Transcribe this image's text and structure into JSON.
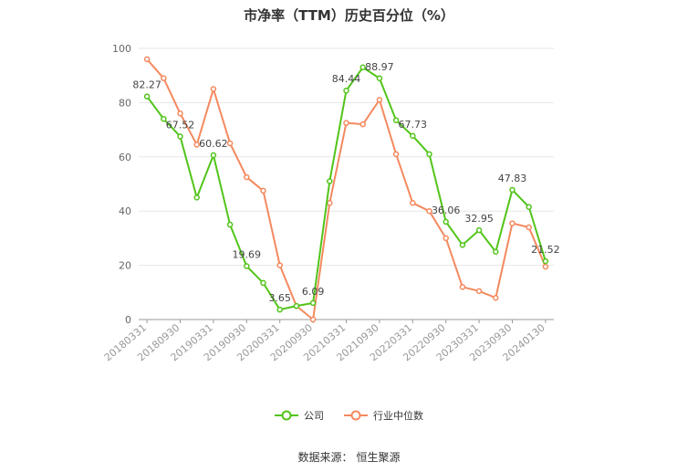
{
  "chart_data": {
    "type": "line",
    "title": "市净率（TTM）历史百分位（%）",
    "xlabel": "",
    "ylabel": "",
    "ylim": [
      0,
      100
    ],
    "yticks": [
      0,
      20,
      40,
      60,
      80,
      100
    ],
    "grid": true,
    "legend_position": "bottom",
    "x": [
      "20180331",
      "20180630",
      "20180930",
      "20181231",
      "20190331",
      "20190630",
      "20190930",
      "20191231",
      "20200331",
      "20200630",
      "20200930",
      "20201231",
      "20210331",
      "20210630",
      "20210930",
      "20211231",
      "20220331",
      "20220630",
      "20220930",
      "20221231",
      "20230331",
      "20230630",
      "20230930",
      "20231231",
      "20240130"
    ],
    "xtick_labels": [
      "20180331",
      "20180930",
      "20190331",
      "20190930",
      "20200331",
      "20200930",
      "20210331",
      "20210930",
      "20220331",
      "20220930",
      "20230331",
      "20230930",
      "20240130"
    ],
    "series": [
      {
        "name": "公司",
        "color": "#52c41a",
        "values": [
          82.27,
          74.0,
          67.52,
          45.0,
          60.62,
          35.0,
          19.69,
          13.5,
          3.65,
          5.0,
          6.09,
          51.0,
          84.44,
          93.0,
          88.97,
          73.5,
          67.73,
          61.0,
          36.06,
          27.5,
          32.95,
          25.0,
          47.83,
          41.5,
          21.52
        ],
        "labels": {
          "0": "82.27",
          "2": "67.52",
          "4": "60.62",
          "6": "19.69",
          "8": "3.65",
          "10": "6.09",
          "12": "84.44",
          "14": "88.97",
          "16": "67.73",
          "18": "36.06",
          "20": "32.95",
          "22": "47.83",
          "24": "21.52"
        }
      },
      {
        "name": "行业中位数",
        "color": "#f4895f",
        "values": [
          96.0,
          89.0,
          76.0,
          64.5,
          85.0,
          65.0,
          52.5,
          47.5,
          20.0,
          5.0,
          0.0,
          43.0,
          72.5,
          72.0,
          81.0,
          61.0,
          43.0,
          40.0,
          30.0,
          12.0,
          10.5,
          8.0,
          35.5,
          34.0,
          19.5
        ]
      }
    ]
  },
  "source": {
    "label": "数据来源：",
    "name": "恒生聚源"
  }
}
